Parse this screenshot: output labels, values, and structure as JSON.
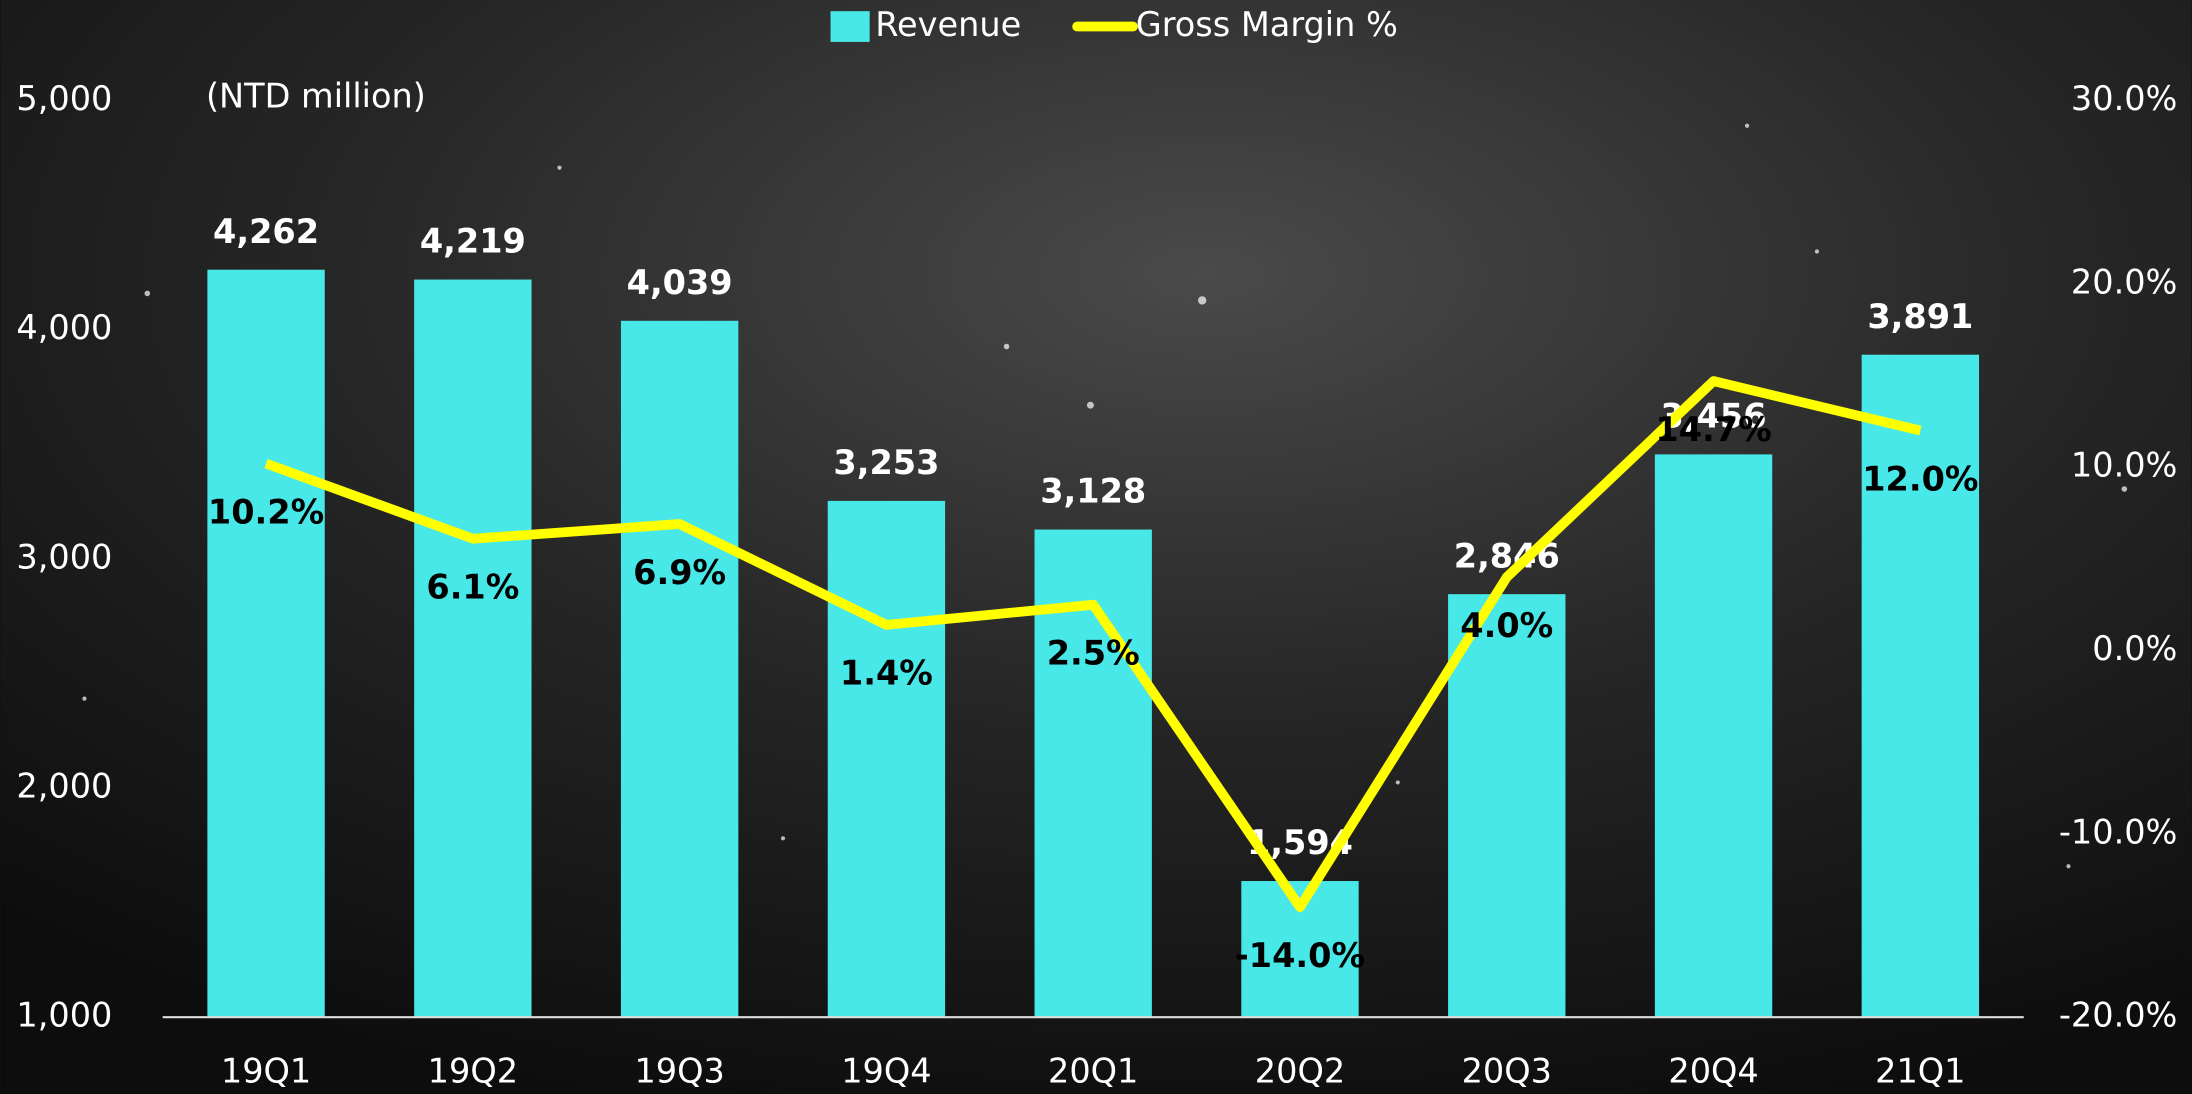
{
  "chart_data": {
    "type": "bar-line",
    "y_label": "(NTD million)",
    "categories": [
      "19Q1",
      "19Q2",
      "19Q3",
      "19Q4",
      "20Q1",
      "20Q2",
      "20Q3",
      "20Q4",
      "21Q1"
    ],
    "series": [
      {
        "name": "Revenue",
        "type": "bar",
        "color": "#48e8e8",
        "values": [
          4262,
          4219,
          4039,
          3253,
          3128,
          1594,
          2846,
          3456,
          3891
        ],
        "value_labels": [
          "4,262",
          "4,219",
          "4,039",
          "3,253",
          "3,128",
          "1,594",
          "2,846",
          "3,456",
          "3,891"
        ]
      },
      {
        "name": "Gross Margin %",
        "type": "line",
        "axis": "y2",
        "color": "#ffff00",
        "values": [
          10.2,
          6.1,
          6.9,
          1.4,
          2.5,
          -14.0,
          4.0,
          14.7,
          12.0
        ],
        "value_labels": [
          "10.2%",
          "6.1%",
          "6.9%",
          "1.4%",
          "2.5%",
          "-14.0%",
          "4.0%",
          "14.7%",
          "12.0%"
        ]
      }
    ],
    "ylim": [
      1000,
      5000
    ],
    "yticks": [
      {
        "value": 1000,
        "label": "1,000"
      },
      {
        "value": 2000,
        "label": "2,000"
      },
      {
        "value": 3000,
        "label": "3,000"
      },
      {
        "value": 4000,
        "label": "4,000"
      },
      {
        "value": 5000,
        "label": "5,000"
      }
    ],
    "y2lim": [
      -20,
      30
    ],
    "y2ticks": [
      {
        "value": -20,
        "label": "-20.0%"
      },
      {
        "value": -10,
        "label": "-10.0%"
      },
      {
        "value": 0,
        "label": "0.0%"
      },
      {
        "value": 10,
        "label": "10.0%"
      },
      {
        "value": 20,
        "label": "20.0%"
      },
      {
        "value": 30,
        "label": "30.0%"
      }
    ],
    "legend": "top"
  }
}
